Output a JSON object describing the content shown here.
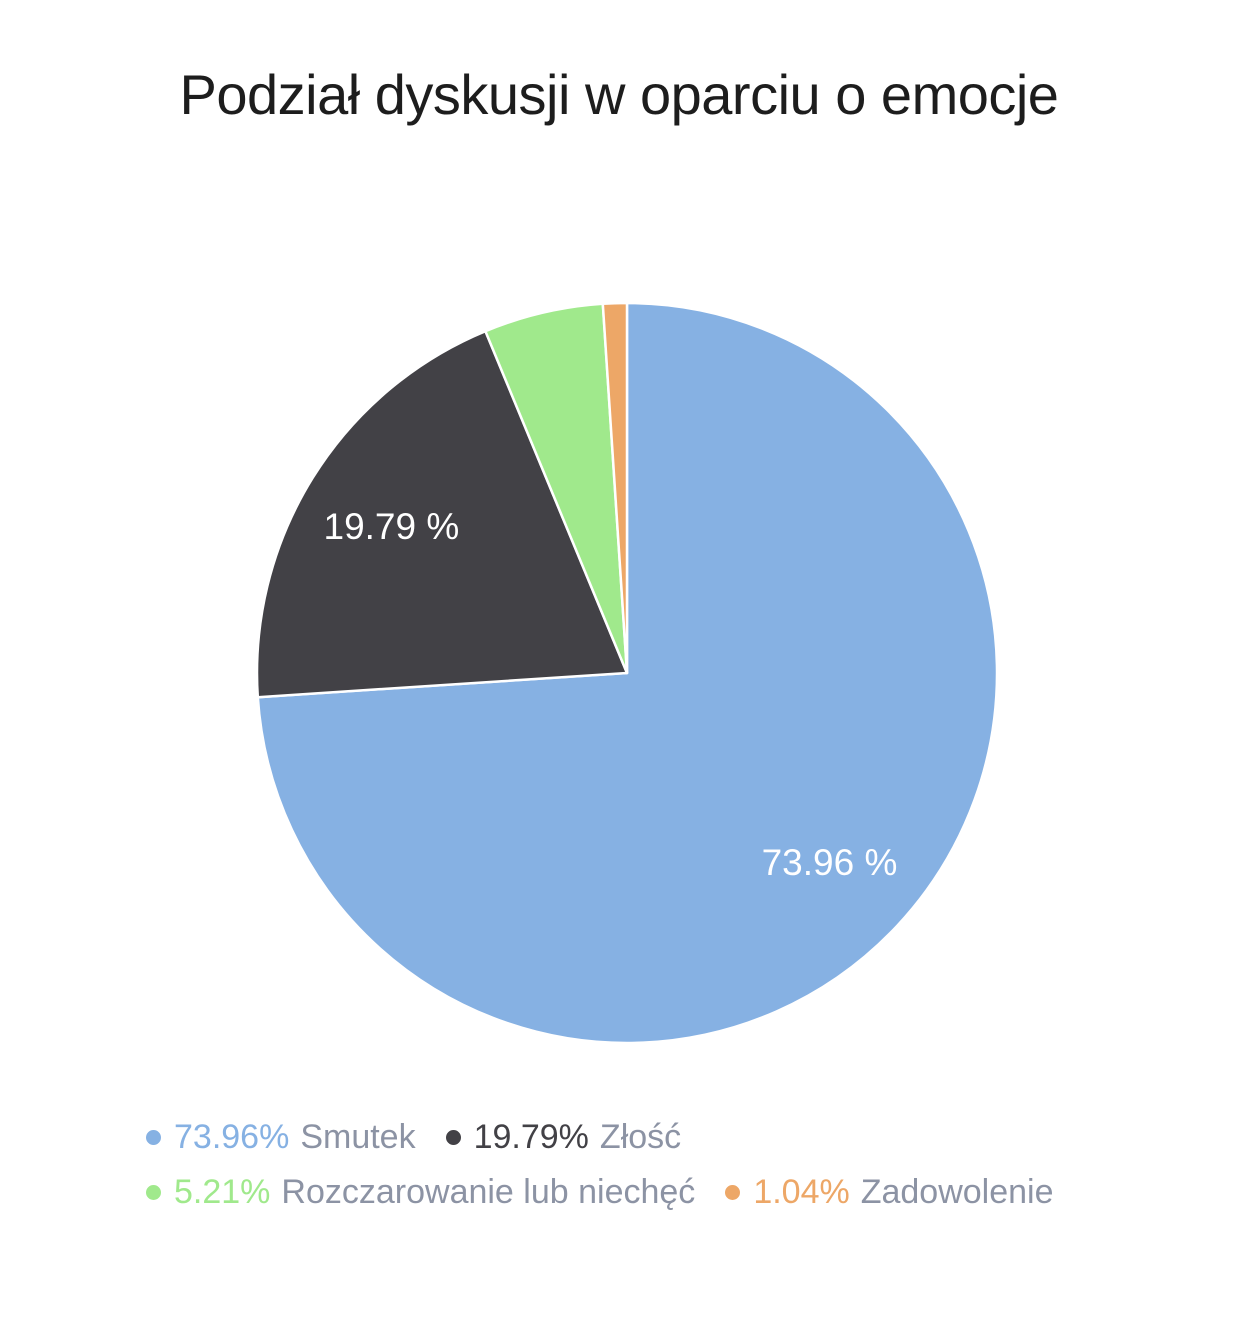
{
  "title": "Podział dyskusji w oparciu o emocje",
  "colors": {
    "background": "#ffffff",
    "title_text": "#1d1d1d",
    "slice_border": "#ffffff",
    "slice_label_text": "#ffffff",
    "legend_label_text": "#8c93a4"
  },
  "chart_data": {
    "type": "pie",
    "title": "Podział dyskusji w oparciu o emocje",
    "legend_position": "bottom",
    "start_angle": "12-oclock",
    "direction": "clockwise",
    "slices": [
      {
        "id": "smutek",
        "name": "Smutek",
        "value": 73.96,
        "color": "#86b1e3",
        "slice_label": "73.96 %",
        "legend_percent": "73.96%",
        "show_slice_label": true
      },
      {
        "id": "zlosc",
        "name": "Złość",
        "value": 19.79,
        "color": "#424146",
        "slice_label": "19.79 %",
        "legend_percent": "19.79%",
        "show_slice_label": true
      },
      {
        "id": "rozczarowanie",
        "name": "Rozczarowanie lub niechęć",
        "value": 5.21,
        "color": "#a0e98c",
        "slice_label": "5.21 %",
        "legend_percent": "5.21%",
        "show_slice_label": false
      },
      {
        "id": "zadowolenie",
        "name": "Zadowolenie",
        "value": 1.04,
        "color": "#eda767",
        "slice_label": "1.04 %",
        "legend_percent": "1.04%",
        "show_slice_label": false
      }
    ]
  }
}
